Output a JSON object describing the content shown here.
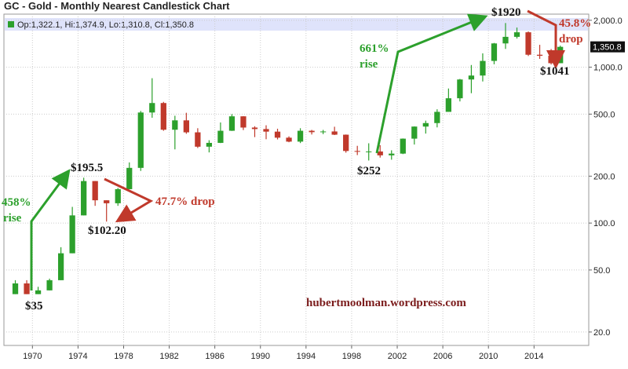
{
  "chart_data": {
    "type": "candlestick",
    "title": "GC - Gold - Monthly Nearest Candlestick Chart",
    "ohlc_legend": "Op:1,322.1, Hi:1,374.9, Lo:1,310.8, Cl:1,350.8",
    "x": [
      1968.5,
      1969.5,
      1970.5,
      1971.5,
      1972.5,
      1973.5,
      1974.5,
      1975.5,
      1976.5,
      1977.5,
      1978.5,
      1979.5,
      1980.5,
      1981.5,
      1982.5,
      1983.5,
      1984.5,
      1985.5,
      1986.5,
      1987.5,
      1988.5,
      1989.5,
      1990.5,
      1991.5,
      1992.5,
      1993.5,
      1994.5,
      1995.5,
      1996.5,
      1997.5,
      1998.5,
      1999.5,
      2000.5,
      2001.5,
      2002.5,
      2003.5,
      2004.5,
      2005.5,
      2006.5,
      2007.5,
      2008.5,
      2009.5,
      2010.5,
      2011.5,
      2012.5,
      2013.5,
      2014.5,
      2015.5,
      2016.3
    ],
    "open": [
      35,
      41,
      35,
      37,
      43,
      64,
      112,
      186,
      140,
      134,
      165,
      226,
      512,
      589,
      397,
      456,
      382,
      309,
      327,
      391,
      484,
      410,
      401,
      386,
      353,
      333,
      391,
      383,
      387,
      369,
      290,
      288,
      288,
      272,
      279,
      348,
      416,
      438,
      517,
      632,
      834,
      884,
      1097,
      1421,
      1566,
      1675,
      1202,
      1184,
      1061
    ],
    "high": [
      43,
      43,
      39,
      44,
      70,
      127,
      195.5,
      186,
      140,
      168,
      245,
      524,
      850,
      599,
      488,
      510,
      406,
      340,
      442,
      500,
      485,
      418,
      424,
      403,
      360,
      406,
      396,
      396,
      415,
      370,
      313,
      325,
      316,
      293,
      349,
      417,
      454,
      537,
      730,
      841,
      1033,
      1227,
      1431,
      1920,
      1796,
      1696,
      1392,
      1308,
      1375
    ],
    "low": [
      35,
      35,
      35,
      37,
      43,
      64,
      112,
      129,
      102.2,
      129,
      165,
      216,
      474,
      391,
      297,
      374,
      303,
      284,
      326,
      390,
      395,
      356,
      345,
      344,
      330,
      326,
      370,
      372,
      367,
      283,
      273,
      252,
      263,
      255,
      277,
      319,
      375,
      411,
      517,
      603,
      681,
      810,
      1044,
      1310,
      1527,
      1180,
      1131,
      1041,
      1061
    ],
    "close": [
      41,
      35,
      37,
      43,
      64,
      112,
      186,
      140,
      134,
      165,
      226,
      512,
      589,
      397,
      456,
      382,
      309,
      327,
      391,
      484,
      410,
      401,
      386,
      353,
      333,
      391,
      383,
      387,
      369,
      290,
      288,
      288,
      272,
      279,
      348,
      416,
      438,
      517,
      632,
      834,
      884,
      1097,
      1421,
      1566,
      1675,
      1202,
      1184,
      1061,
      1351
    ],
    "up_color": "#2ca02c",
    "down_color": "#c0392b",
    "log_y": true,
    "grid": true,
    "xlim": [
      1967.5,
      2018.8
    ],
    "xticks": [
      1970,
      1974,
      1978,
      1982,
      1986,
      1990,
      1994,
      1998,
      2002,
      2006,
      2010,
      2014
    ],
    "ylim": [
      16.4,
      2190
    ],
    "yticks": [
      {
        "value": 20,
        "label": "20.0"
      },
      {
        "value": 50,
        "label": "50.0"
      },
      {
        "value": 100,
        "label": "100.0"
      },
      {
        "value": 200,
        "label": "200.0"
      },
      {
        "value": 500,
        "label": "500.0"
      },
      {
        "value": 1000,
        "label": "1,000.0"
      },
      {
        "value": 2000,
        "label": "2,000.0"
      }
    ],
    "last_price": {
      "value": 1350.8,
      "label": "1,350.8"
    },
    "annotations": [
      "$1920",
      "45.8%",
      "drop",
      "661%",
      "rise",
      "$1041",
      "$252",
      "$195.5",
      "458%",
      "rise",
      "47.7% drop",
      "$102.20",
      "$35",
      "hubertmoolman.wordpress.com"
    ]
  }
}
